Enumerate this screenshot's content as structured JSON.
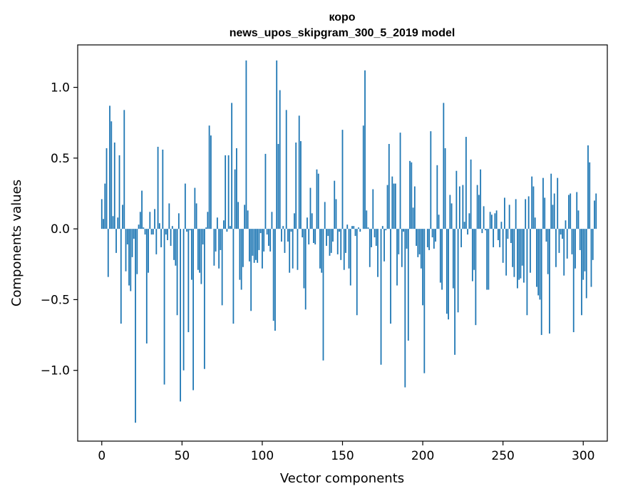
{
  "chart_data": {
    "type": "bar",
    "title": "коро",
    "subtitle": "news_upos_skipgram_300_5_2019 model",
    "xlabel": "Vector components",
    "ylabel": "Components values",
    "xlim": [
      -15,
      315
    ],
    "ylim": [
      -1.5,
      1.3
    ],
    "xticks": [
      0,
      50,
      100,
      150,
      200,
      250,
      300
    ],
    "yticks": [
      -1.0,
      -0.5,
      0.0,
      0.5,
      1.0
    ],
    "ytick_labels": [
      "−1.0",
      "−0.5",
      "0.0",
      "0.5",
      "1.0"
    ],
    "bar_color": "#1f77b4",
    "grid": false,
    "values": [
      0.21,
      0.07,
      0.32,
      0.57,
      -0.34,
      0.87,
      0.76,
      0.09,
      0.61,
      -0.17,
      0.08,
      0.52,
      -0.67,
      0.17,
      0.84,
      -0.3,
      -0.11,
      -0.4,
      -0.44,
      -0.2,
      -0.07,
      -1.37,
      -0.32,
      0.03,
      0.12,
      0.27,
      0.01,
      -0.04,
      -0.81,
      -0.31,
      0.12,
      -0.04,
      -0.04,
      0.14,
      -0.18,
      0.58,
      0.04,
      -0.13,
      0.56,
      -1.1,
      -0.04,
      -0.08,
      0.18,
      -0.12,
      0.02,
      -0.22,
      -0.26,
      -0.61,
      0.11,
      -1.22,
      0.0,
      -1.0,
      0.32,
      -0.02,
      -0.73,
      -0.01,
      -0.36,
      -1.14,
      0.29,
      0.18,
      -0.29,
      -0.31,
      -0.39,
      -0.11,
      -0.99,
      0.01,
      0.12,
      0.73,
      0.66,
      0.0,
      -0.26,
      -0.16,
      0.08,
      -0.28,
      -0.15,
      -0.54,
      0.06,
      0.52,
      -0.02,
      0.52,
      0.02,
      0.89,
      -0.67,
      0.42,
      0.57,
      0.19,
      -0.36,
      -0.43,
      -0.27,
      0.17,
      1.19,
      0.13,
      -0.23,
      -0.58,
      -0.19,
      -0.24,
      -0.22,
      -0.24,
      -0.15,
      -0.03,
      -0.28,
      -0.16,
      0.53,
      -0.04,
      -0.12,
      -0.16,
      0.12,
      -0.65,
      -0.72,
      1.19,
      0.6,
      0.98,
      -0.09,
      0.02,
      -0.17,
      0.84,
      -0.09,
      -0.31,
      -0.02,
      -0.28,
      0.11,
      0.61,
      -0.29,
      0.8,
      0.62,
      -0.06,
      -0.42,
      -0.57,
      0.08,
      -0.11,
      0.29,
      0.11,
      -0.1,
      -0.11,
      0.42,
      0.39,
      -0.28,
      -0.31,
      -0.93,
      0.19,
      -0.12,
      -0.05,
      -0.19,
      -0.17,
      -0.09,
      0.34,
      0.21,
      -0.18,
      -0.02,
      -0.22,
      0.7,
      -0.29,
      -0.17,
      0.03,
      -0.28,
      -0.4,
      0.02,
      0.02,
      -0.05,
      -0.61,
      0.01,
      -0.02,
      0.0,
      0.73,
      1.12,
      0.13,
      0.01,
      -0.27,
      -0.13,
      0.28,
      -0.06,
      -0.12,
      -0.34,
      0.0,
      -0.96,
      0.02,
      -0.23,
      -0.01,
      0.31,
      0.6,
      -0.67,
      0.37,
      0.32,
      0.32,
      -0.4,
      -0.18,
      0.68,
      -0.27,
      -0.02,
      -1.12,
      -0.14,
      -0.79,
      0.48,
      0.47,
      0.15,
      0.3,
      -0.12,
      -0.2,
      -0.18,
      -0.28,
      -0.54,
      -1.02,
      0.0,
      -0.13,
      -0.15,
      0.69,
      -0.06,
      -0.14,
      -0.09,
      0.45,
      0.1,
      -0.38,
      -0.43,
      0.89,
      0.57,
      -0.6,
      -0.64,
      0.24,
      0.18,
      -0.42,
      -0.89,
      0.41,
      -0.59,
      0.3,
      -0.13,
      0.31,
      0.05,
      0.65,
      -0.04,
      0.11,
      0.49,
      -0.37,
      -0.29,
      -0.68,
      0.31,
      0.24,
      0.42,
      -0.03,
      0.16,
      -0.01,
      -0.43,
      -0.43,
      0.12,
      0.1,
      -0.13,
      0.11,
      0.13,
      -0.08,
      -0.13,
      0.05,
      -0.24,
      0.22,
      -0.33,
      -0.07,
      0.17,
      -0.1,
      -0.27,
      -0.34,
      0.21,
      -0.42,
      -0.36,
      -0.35,
      -0.26,
      -0.38,
      0.21,
      -0.61,
      0.23,
      -0.31,
      0.37,
      0.3,
      0.08,
      -0.41,
      -0.47,
      -0.5,
      -0.75,
      0.36,
      0.22,
      -0.09,
      -0.32,
      -0.74,
      0.39,
      0.17,
      0.25,
      -0.27,
      0.36,
      -0.17,
      -0.04,
      -0.07,
      -0.33,
      0.06,
      -0.21,
      0.24,
      0.25,
      -0.18,
      -0.73,
      -0.28,
      0.26,
      0.13,
      -0.15,
      -0.61,
      -0.36,
      -0.3,
      -0.49,
      0.59,
      0.47,
      -0.41,
      -0.22,
      0.2,
      0.25
    ]
  }
}
